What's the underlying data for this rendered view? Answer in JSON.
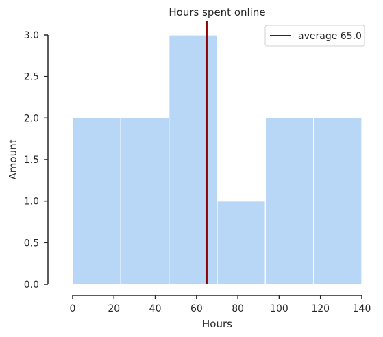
{
  "chart_data": {
    "type": "bar",
    "title": "Hours spent online",
    "xlabel": "Hours",
    "ylabel": "Amount",
    "bins": [
      {
        "start": 0,
        "end": 23.33,
        "count": 2
      },
      {
        "start": 23.33,
        "end": 46.67,
        "count": 2
      },
      {
        "start": 46.67,
        "end": 70,
        "count": 3
      },
      {
        "start": 70,
        "end": 93.33,
        "count": 1
      },
      {
        "start": 93.33,
        "end": 116.67,
        "count": 2
      },
      {
        "start": 116.67,
        "end": 140,
        "count": 2
      }
    ],
    "xlim": [
      0,
      140
    ],
    "ylim": [
      0,
      3
    ],
    "xticks": [
      0,
      20,
      40,
      60,
      80,
      100,
      120,
      140
    ],
    "xtick_labels": [
      "0",
      "20",
      "40",
      "60",
      "80",
      "100",
      "120",
      "140"
    ],
    "yticks": [
      0,
      0.5,
      1,
      1.5,
      2,
      2.5,
      3
    ],
    "ytick_labels": [
      "0.0",
      "0.5",
      "1.0",
      "1.5",
      "2.0",
      "2.5",
      "3.0"
    ],
    "average_line": {
      "x": 65.0,
      "label": "average 65.0"
    },
    "legend_position": "top-right",
    "grid": false,
    "colors": {
      "bar_fill": "#b8d6f5",
      "bar_edge": "#ffffff",
      "average_line": "#8b0000",
      "axis": "#262626"
    }
  }
}
